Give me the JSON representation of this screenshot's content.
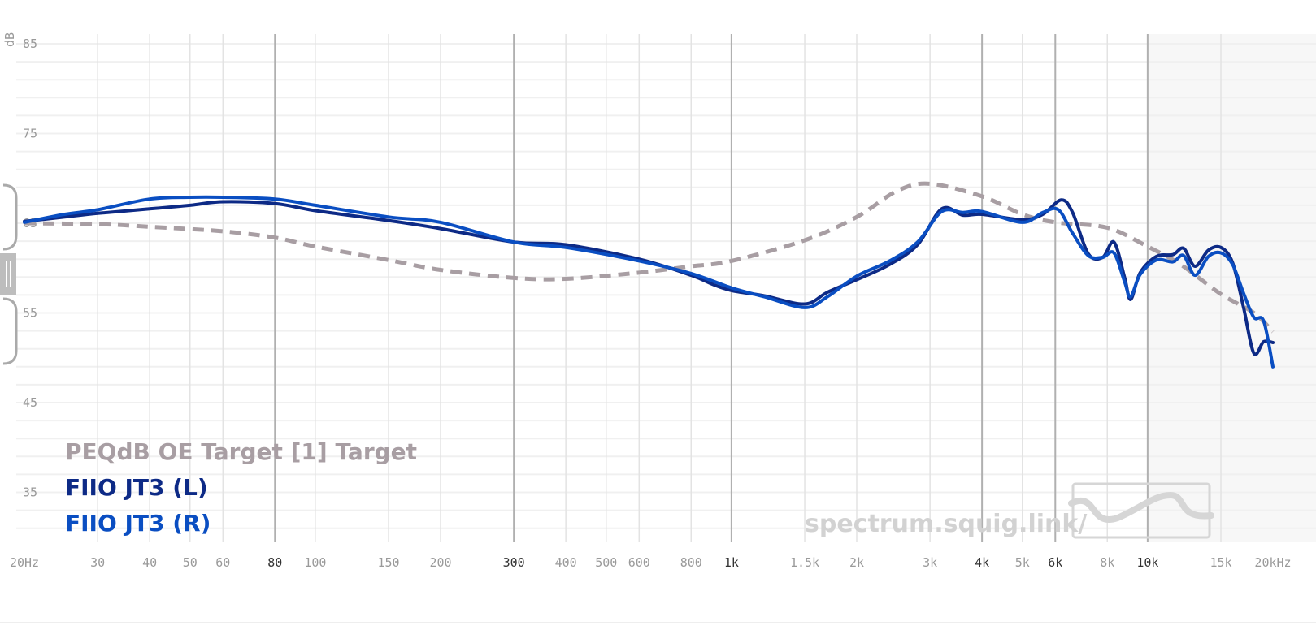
{
  "chart_data": {
    "type": "line",
    "ylabel": "dB",
    "x_scale": "log",
    "xlim": [
      20,
      20000
    ],
    "ylim": [
      29,
      87
    ],
    "y_ticks": [
      {
        "value": 85,
        "label": "85"
      },
      {
        "value": 75,
        "label": "75"
      },
      {
        "value": 65,
        "label": "65"
      },
      {
        "value": 55,
        "label": "55"
      },
      {
        "value": 45,
        "label": "45"
      },
      {
        "value": 35,
        "label": "35"
      }
    ],
    "x_ticks": [
      {
        "value": 20,
        "label": "20Hz",
        "major": false
      },
      {
        "value": 30,
        "label": "30",
        "major": false
      },
      {
        "value": 40,
        "label": "40",
        "major": false
      },
      {
        "value": 50,
        "label": "50",
        "major": false
      },
      {
        "value": 60,
        "label": "60",
        "major": false
      },
      {
        "value": 80,
        "label": "80",
        "major": true
      },
      {
        "value": 100,
        "label": "100",
        "major": false
      },
      {
        "value": 150,
        "label": "150",
        "major": false
      },
      {
        "value": 200,
        "label": "200",
        "major": false
      },
      {
        "value": 300,
        "label": "300",
        "major": true
      },
      {
        "value": 400,
        "label": "400",
        "major": false
      },
      {
        "value": 500,
        "label": "500",
        "major": false
      },
      {
        "value": 600,
        "label": "600",
        "major": false
      },
      {
        "value": 800,
        "label": "800",
        "major": false
      },
      {
        "value": 1000,
        "label": "1k",
        "major": true
      },
      {
        "value": 1500,
        "label": "1.5k",
        "major": false
      },
      {
        "value": 2000,
        "label": "2k",
        "major": false
      },
      {
        "value": 3000,
        "label": "3k",
        "major": false
      },
      {
        "value": 4000,
        "label": "4k",
        "major": true
      },
      {
        "value": 5000,
        "label": "5k",
        "major": false
      },
      {
        "value": 6000,
        "label": "6k",
        "major": true
      },
      {
        "value": 8000,
        "label": "8k",
        "major": false
      },
      {
        "value": 10000,
        "label": "10k",
        "major": true
      },
      {
        "value": 15000,
        "label": "15k",
        "major": false
      },
      {
        "value": 20000,
        "label": "20kHz",
        "major": false
      }
    ],
    "shaded_region": [
      10000,
      20000
    ],
    "series": [
      {
        "name": "PEQdB OE Target [1] Target",
        "color": "#a89ea3",
        "dashed": true,
        "points": [
          [
            20,
            65
          ],
          [
            30,
            64.9
          ],
          [
            40,
            64.6
          ],
          [
            60,
            64.1
          ],
          [
            80,
            63.4
          ],
          [
            100,
            62.4
          ],
          [
            150,
            60.9
          ],
          [
            200,
            59.8
          ],
          [
            300,
            58.9
          ],
          [
            400,
            58.8
          ],
          [
            600,
            59.5
          ],
          [
            800,
            60.2
          ],
          [
            1000,
            60.8
          ],
          [
            1500,
            63.1
          ],
          [
            2000,
            65.7
          ],
          [
            2500,
            68.6
          ],
          [
            3000,
            69.4
          ],
          [
            4000,
            68
          ],
          [
            5000,
            66
          ],
          [
            6000,
            65.1
          ],
          [
            8000,
            64.5
          ],
          [
            10000,
            62.4
          ],
          [
            12000,
            60.4
          ],
          [
            15000,
            57.1
          ],
          [
            18000,
            55
          ],
          [
            20000,
            52.9
          ]
        ]
      },
      {
        "name": "FIIO JT3 (L)",
        "color": "#0d2a86",
        "dashed": false,
        "points": [
          [
            20,
            65.2
          ],
          [
            25,
            65.7
          ],
          [
            30,
            66.1
          ],
          [
            40,
            66.6
          ],
          [
            50,
            67
          ],
          [
            60,
            67.4
          ],
          [
            80,
            67.2
          ],
          [
            100,
            66.4
          ],
          [
            150,
            65.3
          ],
          [
            200,
            64.4
          ],
          [
            300,
            62.9
          ],
          [
            400,
            62.6
          ],
          [
            600,
            61
          ],
          [
            800,
            59.2
          ],
          [
            900,
            58.2
          ],
          [
            1000,
            57.5
          ],
          [
            1200,
            56.9
          ],
          [
            1500,
            56
          ],
          [
            1700,
            57.3
          ],
          [
            2000,
            58.7
          ],
          [
            2400,
            60.4
          ],
          [
            2800,
            62.6
          ],
          [
            3200,
            66.6
          ],
          [
            3600,
            65.9
          ],
          [
            4000,
            66
          ],
          [
            5000,
            65.4
          ],
          [
            5600,
            66
          ],
          [
            6200,
            67.6
          ],
          [
            6600,
            66.2
          ],
          [
            7200,
            61.6
          ],
          [
            7800,
            61.2
          ],
          [
            8300,
            62.9
          ],
          [
            8800,
            59
          ],
          [
            9100,
            56.5
          ],
          [
            9600,
            59.5
          ],
          [
            10500,
            61.3
          ],
          [
            11500,
            61.5
          ],
          [
            12200,
            62.2
          ],
          [
            13000,
            60.2
          ],
          [
            14000,
            62
          ],
          [
            15000,
            62.3
          ],
          [
            16000,
            60.6
          ],
          [
            17000,
            55.6
          ],
          [
            18000,
            50.5
          ],
          [
            19000,
            51.8
          ],
          [
            20000,
            51.7
          ]
        ]
      },
      {
        "name": "FIIO JT3 (R)",
        "color": "#0a4ec2",
        "dashed": false,
        "points": [
          [
            20,
            65.1
          ],
          [
            25,
            66
          ],
          [
            30,
            66.5
          ],
          [
            40,
            67.7
          ],
          [
            50,
            67.9
          ],
          [
            60,
            67.9
          ],
          [
            80,
            67.7
          ],
          [
            100,
            67
          ],
          [
            150,
            65.7
          ],
          [
            200,
            65.1
          ],
          [
            300,
            62.9
          ],
          [
            400,
            62.3
          ],
          [
            600,
            60.8
          ],
          [
            800,
            59.4
          ],
          [
            1000,
            57.8
          ],
          [
            1200,
            56.8
          ],
          [
            1500,
            55.6
          ],
          [
            1700,
            56.8
          ],
          [
            2000,
            59.1
          ],
          [
            2400,
            60.8
          ],
          [
            2800,
            62.9
          ],
          [
            3200,
            66.3
          ],
          [
            3600,
            66.2
          ],
          [
            4000,
            66.3
          ],
          [
            5000,
            65.1
          ],
          [
            5600,
            66.2
          ],
          [
            6100,
            66.5
          ],
          [
            6600,
            63.9
          ],
          [
            7200,
            61.4
          ],
          [
            7800,
            61.2
          ],
          [
            8300,
            61.7
          ],
          [
            8800,
            58.5
          ],
          [
            9100,
            56.8
          ],
          [
            9600,
            59.3
          ],
          [
            10500,
            60.9
          ],
          [
            11500,
            60.7
          ],
          [
            12200,
            61.4
          ],
          [
            13000,
            59.2
          ],
          [
            14000,
            61.3
          ],
          [
            15000,
            61.7
          ],
          [
            16000,
            60.4
          ],
          [
            17000,
            57.2
          ],
          [
            18000,
            54.5
          ],
          [
            19000,
            54.1
          ],
          [
            20000,
            49
          ]
        ]
      }
    ]
  },
  "legend": {
    "target": "PEQdB OE Target [1] Target",
    "left": "FIIO JT3 (L)",
    "right": "FIIO JT3 (R)"
  },
  "watermark": "spectrum.squig.link/",
  "colors": {
    "target": "#a89ea3",
    "left": "#0d2a86",
    "right": "#0a4ec2",
    "major_grid": "#b0b0b0",
    "minor_grid": "#e3e3e3"
  }
}
